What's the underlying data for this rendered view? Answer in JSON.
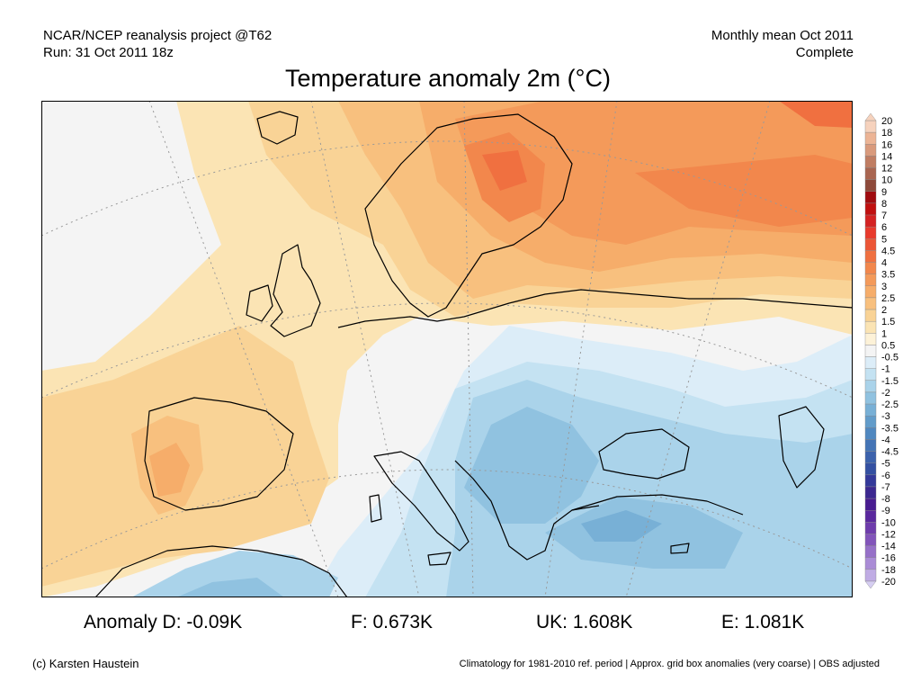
{
  "header": {
    "left_line1": "NCAR/NCEP reanalysis project @T62",
    "left_line2": "Run: 31 Oct 2011 18z",
    "right_line1": "Monthly mean Oct 2011",
    "right_line2": "Complete"
  },
  "title": "Temperature anomaly 2m (°C)",
  "legend": {
    "labels": [
      "20",
      "18",
      "16",
      "14",
      "12",
      "10",
      "9",
      "8",
      "7",
      "6",
      "5",
      "4.5",
      "4",
      "3.5",
      "3",
      "2.5",
      "2",
      "1.5",
      "1",
      "0.5",
      "-0.5",
      "-1",
      "-1.5",
      "-2",
      "-2.5",
      "-3",
      "-3.5",
      "-4",
      "-4.5",
      "-5",
      "-6",
      "-7",
      "-8",
      "-9",
      "-10",
      "-12",
      "-14",
      "-16",
      "-18",
      "-20"
    ],
    "colors": [
      "#f6d2bd",
      "#ecb495",
      "#d99a7c",
      "#c07d62",
      "#a96550",
      "#8e4a3a",
      "#a00c10",
      "#c01010",
      "#d42222",
      "#e83a2c",
      "#ec5536",
      "#f07040",
      "#f2874c",
      "#f49a5a",
      "#f6ad6a",
      "#f8c07e",
      "#f9d396",
      "#fbe4b4",
      "#fdf2d8",
      "#f4f4f4",
      "#dcedf8",
      "#c4e2f2",
      "#aad3ea",
      "#90c2e0",
      "#78b0d6",
      "#629cca",
      "#5088c0",
      "#4474b6",
      "#3c62ac",
      "#3450a2",
      "#34399a",
      "#3c2890",
      "#481c90",
      "#5a289e",
      "#6e3cac",
      "#8254ba",
      "#9670c8",
      "#aa8cd6",
      "#c0acE4",
      "#d6cef2"
    ]
  },
  "stats": {
    "d": "Anomaly D: -0.09K",
    "f": "F: 0.673K",
    "uk": "UK: 1.608K",
    "e": "E: 1.081K"
  },
  "credit": "(c) Karsten Haustein",
  "footnote": "Climatology for 1981-2010 ref. period | Approx. grid box anomalies (very coarse) | OBS adjusted"
}
